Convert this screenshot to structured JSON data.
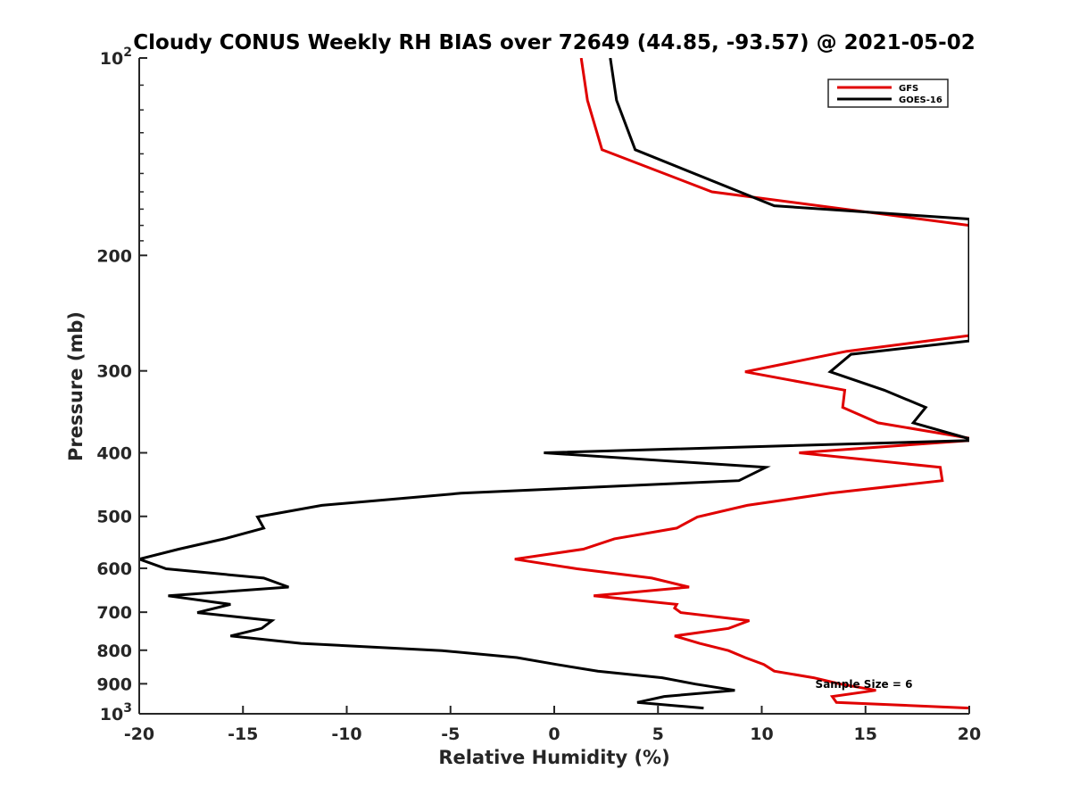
{
  "chart_data": {
    "type": "line",
    "title": "Cloudy CONUS Weekly RH BIAS over 72649 (44.85, -93.57) @ 2021-05-02",
    "xlabel": "Relative Humidity (%)",
    "ylabel": "Pressure (mb)",
    "xlim": [
      -20,
      20
    ],
    "ylim": [
      100,
      1000
    ],
    "yscale": "log",
    "y_reversed": true,
    "x_ticks": [
      -20,
      -15,
      -10,
      -5,
      0,
      5,
      10,
      15,
      20
    ],
    "x_tick_labels": [
      "-20",
      "-15",
      "-10",
      "-5",
      "0",
      "5",
      "10",
      "15",
      "20"
    ],
    "y_ticks": [
      100,
      200,
      300,
      400,
      500,
      600,
      700,
      800,
      900,
      1000
    ],
    "y_tick_labels": [
      {
        "value": 100,
        "base": "10",
        "exp": "2"
      },
      {
        "value": 200,
        "base": "200",
        "exp": ""
      },
      {
        "value": 300,
        "base": "300",
        "exp": ""
      },
      {
        "value": 400,
        "base": "400",
        "exp": ""
      },
      {
        "value": 500,
        "base": "500",
        "exp": ""
      },
      {
        "value": 600,
        "base": "600",
        "exp": ""
      },
      {
        "value": 700,
        "base": "700",
        "exp": ""
      },
      {
        "value": 800,
        "base": "800",
        "exp": ""
      },
      {
        "value": 900,
        "base": "900",
        "exp": ""
      },
      {
        "value": 1000,
        "base": "10",
        "exp": "3"
      }
    ],
    "grid": false,
    "legend_position": "top-right",
    "annotation": "Sample Size = 6",
    "series": [
      {
        "name": "GFS",
        "color": "#e00000",
        "points": [
          [
            1.3,
            100
          ],
          [
            1.6,
            116
          ],
          [
            2.3,
            138
          ],
          [
            7.6,
            160
          ],
          [
            20,
            180
          ],
          [
            20,
            265
          ],
          [
            14.1,
            280
          ],
          [
            9.2,
            301
          ],
          [
            14.0,
            321
          ],
          [
            13.9,
            341
          ],
          [
            15.6,
            360
          ],
          [
            20,
            380
          ],
          [
            20,
            383
          ],
          [
            11.8,
            400
          ],
          [
            18.6,
            421
          ],
          [
            18.7,
            441
          ],
          [
            13.3,
            461
          ],
          [
            9.3,
            481
          ],
          [
            6.9,
            501
          ],
          [
            5.9,
            521
          ],
          [
            2.9,
            541
          ],
          [
            1.4,
            561
          ],
          [
            -1.9,
            581
          ],
          [
            1.1,
            601
          ],
          [
            4.7,
            621
          ],
          [
            6.5,
            641
          ],
          [
            1.9,
            661
          ],
          [
            5.9,
            681
          ],
          [
            5.8,
            690
          ],
          [
            6.1,
            701
          ],
          [
            9.4,
            721
          ],
          [
            8.4,
            741
          ],
          [
            5.8,
            761
          ],
          [
            7.0,
            781
          ],
          [
            8.4,
            801
          ],
          [
            9.2,
            821
          ],
          [
            10.1,
            841
          ],
          [
            10.6,
            861
          ],
          [
            12.5,
            881
          ],
          [
            13.8,
            901
          ],
          [
            15.5,
            921
          ],
          [
            13.4,
            941
          ],
          [
            13.6,
            961
          ],
          [
            20,
            980
          ]
        ]
      },
      {
        "name": "GOES-16",
        "color": "#000000",
        "points": [
          [
            2.7,
            100
          ],
          [
            3.0,
            116
          ],
          [
            3.9,
            138
          ],
          [
            10.6,
            168
          ],
          [
            20,
            176
          ],
          [
            20,
            270
          ],
          [
            14.3,
            283
          ],
          [
            13.3,
            301
          ],
          [
            15.9,
            321
          ],
          [
            17.9,
            341
          ],
          [
            17.3,
            360
          ],
          [
            19.9,
            380
          ],
          [
            20.3,
            381
          ],
          [
            20.0,
            383
          ],
          [
            -0.5,
            400
          ],
          [
            10.2,
            421
          ],
          [
            8.9,
            441
          ],
          [
            -4.5,
            461
          ],
          [
            -11.2,
            481
          ],
          [
            -14.3,
            501
          ],
          [
            -14.0,
            521
          ],
          [
            -15.9,
            541
          ],
          [
            -18.1,
            561
          ],
          [
            -20.0,
            581
          ],
          [
            -18.7,
            601
          ],
          [
            -14.0,
            621
          ],
          [
            -12.8,
            641
          ],
          [
            -18.6,
            661
          ],
          [
            -15.6,
            681
          ],
          [
            -17.2,
            701
          ],
          [
            -13.6,
            721
          ],
          [
            -14.1,
            741
          ],
          [
            -15.6,
            761
          ],
          [
            -12.2,
            781
          ],
          [
            -5.4,
            801
          ],
          [
            -1.8,
            821
          ],
          [
            0.1,
            841
          ],
          [
            2.1,
            861
          ],
          [
            5.2,
            881
          ],
          [
            6.8,
            901
          ],
          [
            8.7,
            921
          ],
          [
            5.3,
            941
          ],
          [
            4.0,
            961
          ],
          [
            7.2,
            980
          ]
        ]
      }
    ]
  }
}
